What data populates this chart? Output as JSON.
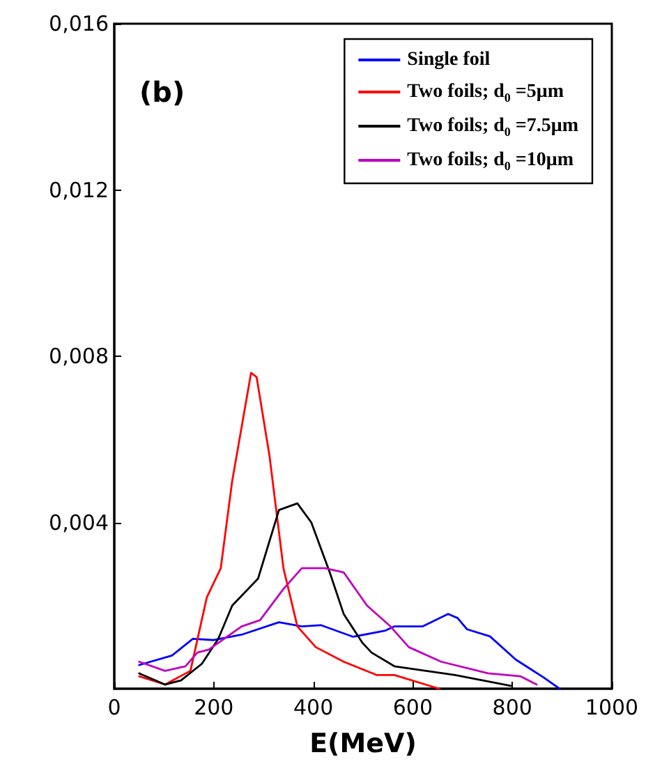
{
  "chart_data": {
    "type": "line",
    "xlabel": "E(MeV)",
    "annotations": [
      "(b)"
    ],
    "xlim": [
      0,
      1000
    ],
    "xticks": [
      0,
      200,
      400,
      600,
      800,
      1000
    ],
    "ylim": [
      0,
      0.016
    ],
    "yticks": [
      {
        "value": 0.004,
        "label": "0,004"
      },
      {
        "value": 0.008,
        "label": "0,008"
      },
      {
        "value": 0.012,
        "label": "0,012"
      },
      {
        "value": 0.016,
        "label": "0,016"
      }
    ],
    "grid": false,
    "legend": "top right",
    "marker": "none",
    "line_style": "solid",
    "series": [
      {
        "name": "Single foil",
        "color": "#0000ff",
        "x": [
          50,
          116,
          158,
          200,
          256,
          331,
          377,
          415,
          480,
          545,
          563,
          620,
          671,
          690,
          709,
          755,
          807,
          863,
          895
        ],
        "values": [
          0.00057,
          0.0008,
          0.0012,
          0.00117,
          0.0013,
          0.0016,
          0.0015,
          0.00153,
          0.00125,
          0.0014,
          0.0015,
          0.0015,
          0.0018,
          0.0017,
          0.00143,
          0.00126,
          0.0007,
          0.00027,
          0
        ]
      },
      {
        "name": "Two foils; d$_{0}$ =5μm",
        "color": "#ff0000",
        "x": [
          50,
          102,
          153,
          186,
          214,
          237,
          275,
          286,
          312,
          340,
          368,
          405,
          461,
          527,
          563,
          653
        ],
        "values": [
          0.0003,
          0.0001,
          0.00043,
          0.0022,
          0.0029,
          0.005,
          0.0076,
          0.0075,
          0.0056,
          0.0029,
          0.0015,
          0.001,
          0.00065,
          0.00033,
          0.00033,
          0
        ]
      },
      {
        "name": "Two foils; d$_{0}$ =7.5μm",
        "color": "#000000",
        "x": [
          50,
          102,
          134,
          176,
          209,
          237,
          289,
          331,
          368,
          396,
          433,
          461,
          499,
          517,
          563,
          685,
          797
        ],
        "values": [
          0.00037,
          0.0001,
          0.0002,
          0.0006,
          0.0012,
          0.002,
          0.00265,
          0.0043,
          0.00446,
          0.004,
          0.0028,
          0.0018,
          0.0011,
          0.00087,
          0.00054,
          0.00033,
          7e-05
        ]
      },
      {
        "name": "Two foils; d$_{0}$ =10μm",
        "color": "#bf00bf",
        "x": [
          50,
          102,
          143,
          167,
          190,
          256,
          293,
          340,
          377,
          424,
          461,
          508,
          555,
          592,
          657,
          751,
          816,
          849
        ],
        "values": [
          0.00065,
          0.00043,
          0.00054,
          0.00087,
          0.00094,
          0.0015,
          0.00165,
          0.0024,
          0.0029,
          0.0029,
          0.0028,
          0.002,
          0.0015,
          0.001,
          0.00065,
          0.00037,
          0.0003,
          0.0001
        ]
      }
    ]
  }
}
